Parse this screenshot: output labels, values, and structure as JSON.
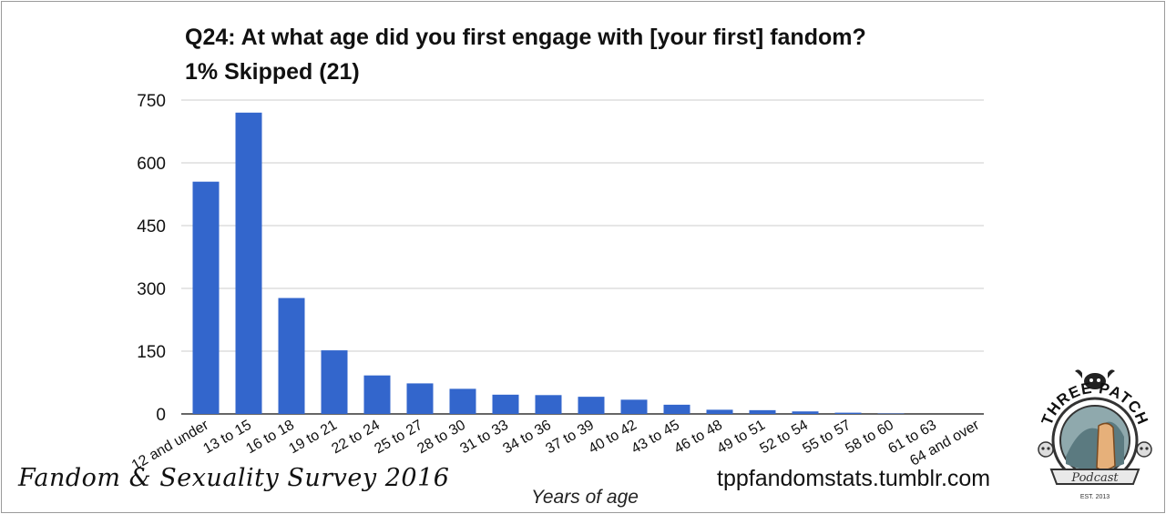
{
  "title_line1": "Q24: At what age did you first engage with [your first] fandom?",
  "title_line2": "1% Skipped (21)",
  "footer_left": "Fandom & Sexuality Survey 2016",
  "footer_right": "tppfandomstats.tumblr.com",
  "logo": {
    "top_text": "THREE PATCH",
    "ribbon_text": "Podcast",
    "est_text": "EST. 2013"
  },
  "colors": {
    "bar": "#3366cc",
    "grid": "#cccccc",
    "text": "#111111"
  },
  "chart_data": {
    "type": "bar",
    "categories": [
      "12 and under",
      "13 to 15",
      "16 to 18",
      "19 to 21",
      "22 to 24",
      "25 to 27",
      "28 to 30",
      "31 to 33",
      "34 to 36",
      "37 to 39",
      "40 to 42",
      "43 to 45",
      "46 to 48",
      "49 to 51",
      "52 to 54",
      "55 to 57",
      "58 to 60",
      "61 to 63",
      "64 and over"
    ],
    "values": [
      555,
      720,
      277,
      152,
      92,
      73,
      60,
      46,
      45,
      41,
      34,
      22,
      10,
      9,
      6,
      3,
      1,
      0,
      0
    ],
    "xlabel": "Years of age",
    "ylabel": "",
    "ylim": [
      0,
      750
    ],
    "yticks": [
      0,
      150,
      300,
      450,
      600,
      750
    ],
    "grid": true,
    "legend": "none"
  }
}
